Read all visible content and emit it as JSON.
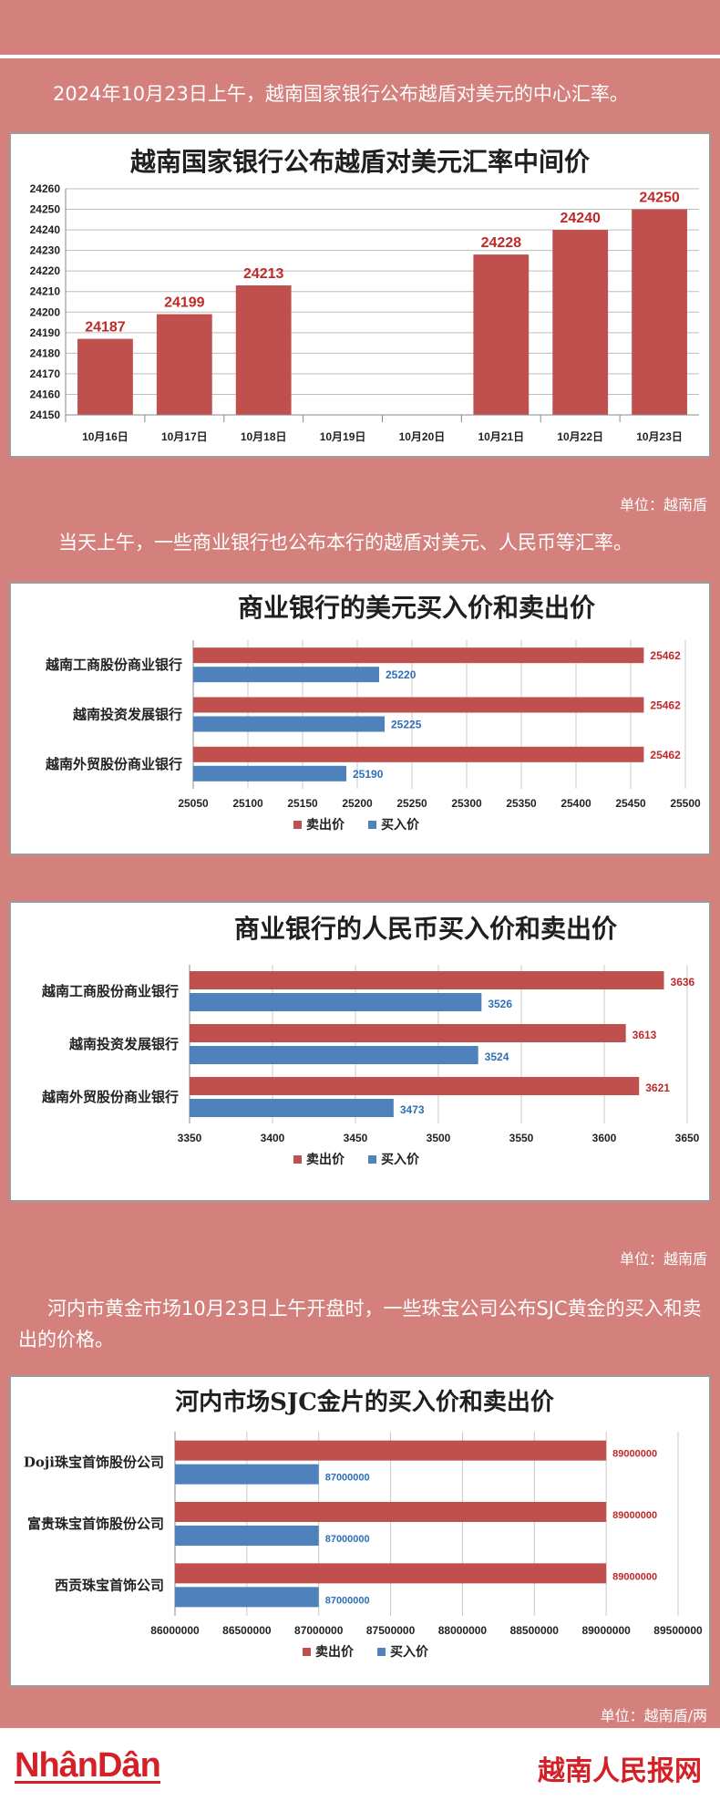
{
  "intro_1": "2024年10月23日上午，越南国家银行公布越盾对美元的中心汇率。",
  "unit_1": "单位：越南盾",
  "intro_2": "当天上午，一些商业银行也公布本行的越盾对美元、人民币等汇率。",
  "unit_2": "单位：越南盾",
  "intro_3": "河内市黄金市场10月23日上午开盘时，一些珠宝公司公布SJC黄金的买入和卖出的价格。",
  "unit_3": "单位：越南盾/两",
  "footer": {
    "logo_left": "NhânDân",
    "logo_right": "越南人民报网"
  },
  "colors": {
    "sell": "#c0504d",
    "buy": "#4f81bd",
    "sell_label": "#c0282a",
    "buy_label": "#2f6fb8"
  },
  "chart_data": [
    {
      "type": "bar",
      "title": "越南国家银行公布越盾对美元汇率中间价",
      "categories": [
        "10月16日",
        "10月17日",
        "10月18日",
        "10月19日",
        "10月20日",
        "10月21日",
        "10月22日",
        "10月23日"
      ],
      "values": [
        24187,
        24199,
        24213,
        null,
        null,
        24228,
        24240,
        24250
      ],
      "ylim": [
        24150,
        24260
      ],
      "yticks": [
        24150,
        24160,
        24170,
        24180,
        24190,
        24200,
        24210,
        24220,
        24230,
        24240,
        24250,
        24260
      ],
      "grid": true
    },
    {
      "type": "bar",
      "orientation": "horizontal",
      "title": "商业银行的美元买入价和卖出价",
      "categories": [
        "越南工商股份商业银行",
        "越南投资发展银行",
        "越南外贸股份商业银行"
      ],
      "series": [
        {
          "name": "卖出价",
          "values": [
            25462,
            25462,
            25462
          ]
        },
        {
          "name": "买入价",
          "values": [
            25220,
            25225,
            25190
          ]
        }
      ],
      "xlim": [
        25050,
        25500
      ],
      "xticks": [
        25050,
        25100,
        25150,
        25200,
        25250,
        25300,
        25350,
        25400,
        25450,
        25500
      ],
      "legend": "bottom",
      "grid": true
    },
    {
      "type": "bar",
      "orientation": "horizontal",
      "title": "商业银行的人民币买入价和卖出价",
      "categories": [
        "越南工商股份商业银行",
        "越南投资发展银行",
        "越南外贸股份商业银行"
      ],
      "series": [
        {
          "name": "卖出价",
          "values": [
            3636,
            3613,
            3621
          ]
        },
        {
          "name": "买入价",
          "values": [
            3526,
            3524,
            3473
          ]
        }
      ],
      "xlim": [
        3350,
        3650
      ],
      "xticks": [
        3350,
        3400,
        3450,
        3500,
        3550,
        3600,
        3650
      ],
      "legend": "bottom",
      "grid": true
    },
    {
      "type": "bar",
      "orientation": "horizontal",
      "title": "河内市场SJC金片的买入价和卖出价",
      "categories": [
        "Doji珠宝首饰股份公司",
        "富贵珠宝首饰股份公司",
        "西贡珠宝首饰公司"
      ],
      "series": [
        {
          "name": "卖出价",
          "values": [
            89000000,
            89000000,
            89000000
          ]
        },
        {
          "name": "买入价",
          "values": [
            87000000,
            87000000,
            87000000
          ]
        }
      ],
      "xlim": [
        86000000,
        89500000
      ],
      "xticks": [
        86000000,
        86500000,
        87000000,
        87500000,
        88000000,
        88500000,
        89000000,
        89500000
      ],
      "legend": "bottom",
      "grid": true
    }
  ]
}
